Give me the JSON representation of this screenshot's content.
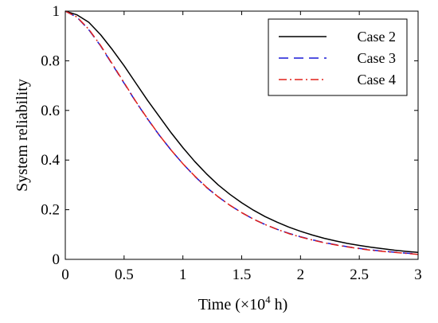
{
  "chart_data": {
    "type": "line",
    "title": "",
    "xlabel_prefix": "Time (",
    "xlabel_times": "×",
    "xlabel_base": "10",
    "xlabel_exp": "4",
    "xlabel_suffix": " h)",
    "ylabel": "System reliability",
    "xlim": [
      0,
      3
    ],
    "ylim": [
      0,
      1
    ],
    "x_ticks": [
      0,
      0.5,
      1,
      1.5,
      2,
      2.5,
      3
    ],
    "x_tick_labels": [
      "0",
      "0.5",
      "1",
      "1.5",
      "2",
      "2.5",
      "3"
    ],
    "y_ticks": [
      0,
      0.2,
      0.4,
      0.6,
      0.8,
      1
    ],
    "y_tick_labels": [
      "0",
      "0.2",
      "0.4",
      "0.6",
      "0.8",
      "1"
    ],
    "grid": false,
    "legend_position": "top-right",
    "x": [
      0,
      0.1,
      0.2,
      0.3,
      0.4,
      0.5,
      0.6,
      0.7,
      0.8,
      0.9,
      1.0,
      1.1,
      1.2,
      1.3,
      1.4,
      1.5,
      1.6,
      1.7,
      1.8,
      1.9,
      2.0,
      2.1,
      2.2,
      2.3,
      2.4,
      2.5,
      2.6,
      2.7,
      2.8,
      2.9,
      3.0
    ],
    "series": [
      {
        "name": "Case 2",
        "color": "#000000",
        "dash": "solid",
        "values": [
          1.0,
          0.985,
          0.955,
          0.905,
          0.845,
          0.78,
          0.71,
          0.64,
          0.575,
          0.51,
          0.45,
          0.395,
          0.345,
          0.3,
          0.262,
          0.228,
          0.198,
          0.172,
          0.15,
          0.13,
          0.113,
          0.098,
          0.085,
          0.074,
          0.064,
          0.056,
          0.049,
          0.043,
          0.037,
          0.032,
          0.028
        ]
      },
      {
        "name": "Case 3",
        "color": "#1a1ad6",
        "dash": "dashed",
        "values": [
          1.0,
          0.975,
          0.925,
          0.86,
          0.785,
          0.71,
          0.635,
          0.565,
          0.5,
          0.44,
          0.385,
          0.335,
          0.29,
          0.252,
          0.218,
          0.188,
          0.162,
          0.14,
          0.121,
          0.105,
          0.091,
          0.079,
          0.068,
          0.059,
          0.051,
          0.044,
          0.038,
          0.033,
          0.029,
          0.025,
          0.022
        ]
      },
      {
        "name": "Case 4",
        "color": "#e0201a",
        "dash": "dashdot",
        "values": [
          1.0,
          0.976,
          0.927,
          0.862,
          0.787,
          0.712,
          0.636,
          0.566,
          0.5,
          0.44,
          0.385,
          0.336,
          0.291,
          0.252,
          0.218,
          0.188,
          0.162,
          0.14,
          0.121,
          0.104,
          0.09,
          0.078,
          0.067,
          0.058,
          0.05,
          0.043,
          0.037,
          0.032,
          0.028,
          0.024,
          0.02
        ]
      }
    ]
  }
}
